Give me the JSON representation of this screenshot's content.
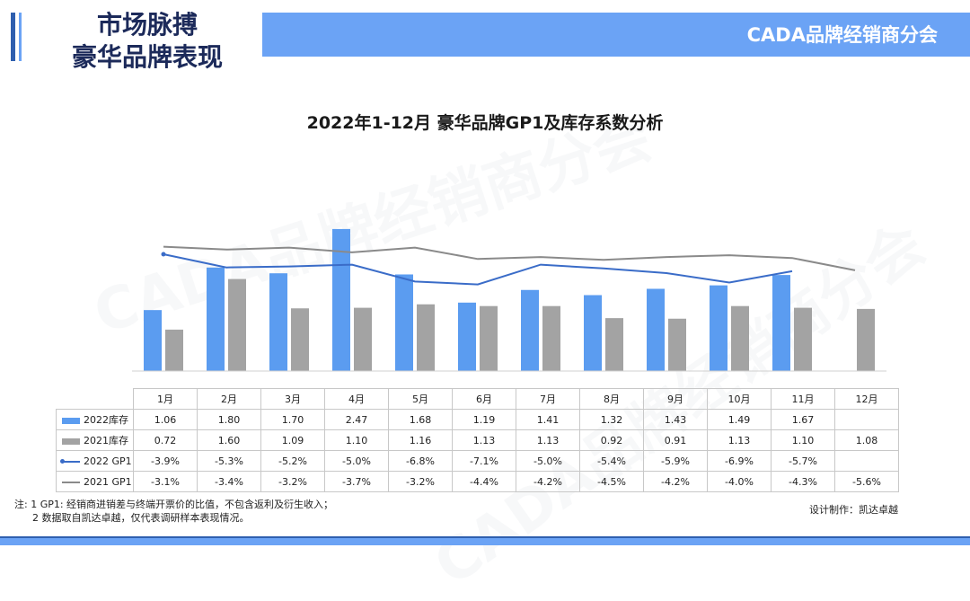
{
  "header": {
    "title_line1": "市场脉搏",
    "title_line2": "豪华品牌表现",
    "org": "CADA品牌经销商分会"
  },
  "watermark": "CADA品牌经销商分会",
  "chart_data": {
    "type": "bar",
    "title": "2022年1-12月 豪华品牌GP1及库存系数分析",
    "categories": [
      "1月",
      "2月",
      "3月",
      "4月",
      "5月",
      "6月",
      "7月",
      "8月",
      "9月",
      "10月",
      "11月",
      "12月"
    ],
    "series": [
      {
        "name": "2022库存",
        "kind": "bar",
        "color": "#5b9cf0",
        "values": [
          1.06,
          1.8,
          1.7,
          2.47,
          1.68,
          1.19,
          1.41,
          1.32,
          1.43,
          1.49,
          1.67,
          null
        ],
        "labels": [
          "1.06",
          "1.80",
          "1.70",
          "2.47",
          "1.68",
          "1.19",
          "1.41",
          "1.32",
          "1.43",
          "1.49",
          "1.67",
          ""
        ]
      },
      {
        "name": "2021库存",
        "kind": "bar",
        "color": "#a3a3a3",
        "values": [
          0.72,
          1.6,
          1.09,
          1.1,
          1.16,
          1.13,
          1.13,
          0.92,
          0.91,
          1.13,
          1.1,
          1.08
        ],
        "labels": [
          "0.72",
          "1.60",
          "1.09",
          "1.10",
          "1.16",
          "1.13",
          "1.13",
          "0.92",
          "0.91",
          "1.13",
          "1.10",
          "1.08"
        ]
      },
      {
        "name": "2022 GP1",
        "kind": "line",
        "color": "#3a6cc8",
        "values": [
          -3.9,
          -5.3,
          -5.2,
          -5.0,
          -6.8,
          -7.1,
          -5.0,
          -5.4,
          -5.9,
          -6.9,
          -5.7,
          null
        ],
        "labels": [
          "-3.9%",
          "-5.3%",
          "-5.2%",
          "-5.0%",
          "-6.8%",
          "-7.1%",
          "-5.0%",
          "-5.4%",
          "-5.9%",
          "-6.9%",
          "-5.7%",
          ""
        ]
      },
      {
        "name": "2021 GP1",
        "kind": "line",
        "color": "#8a8a8a",
        "values": [
          -3.1,
          -3.4,
          -3.2,
          -3.7,
          -3.2,
          -4.4,
          -4.2,
          -4.5,
          -4.2,
          -4.0,
          -4.3,
          -5.6
        ],
        "labels": [
          "-3.1%",
          "-3.4%",
          "-3.2%",
          "-3.7%",
          "-3.2%",
          "-4.4%",
          "-4.2%",
          "-4.5%",
          "-4.2%",
          "-4.0%",
          "-4.3%",
          "-5.6%"
        ]
      }
    ]
  },
  "footnote": {
    "line1": "注: 1 GP1: 经销商进销差与终端开票价的比值，不包含返利及衍生收入；",
    "line2": "2 数据取自凯达卓越，仅代表调研样本表现情况。"
  },
  "credit": "设计制作：凯达卓越"
}
